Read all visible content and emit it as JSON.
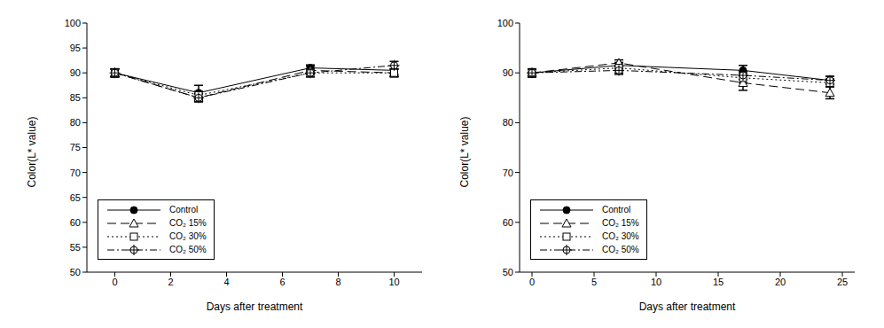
{
  "chart_data": [
    {
      "type": "line",
      "x_label": "Days after treatment",
      "y_label": "Color(L* value)",
      "x": [
        0,
        3,
        7,
        10
      ],
      "xlim": [
        -1,
        11
      ],
      "xticks": [
        0,
        2,
        4,
        6,
        8,
        10
      ],
      "ylim": [
        50,
        100
      ],
      "yticks": [
        50,
        55,
        60,
        65,
        70,
        75,
        80,
        85,
        90,
        95,
        100
      ],
      "grid": false,
      "legend": "lower left",
      "series": [
        {
          "name": "Control",
          "color": "#000000",
          "marker": "filled_circle",
          "line_style": "solid",
          "values": [
            90,
            86,
            91,
            90.5
          ],
          "errors": [
            0.8,
            1.5,
            0.6,
            0.8
          ]
        },
        {
          "name": "CO₂ 15%",
          "color": "#000000",
          "marker": "open_triangle",
          "line_style": "dashed",
          "values": [
            90,
            85,
            90.5,
            90
          ],
          "errors": [
            0.8,
            0.8,
            0.8,
            0.8
          ]
        },
        {
          "name": "CO₂ 30%",
          "color": "#000000",
          "marker": "open_square",
          "line_style": "dotted",
          "values": [
            90,
            85.5,
            90,
            90
          ],
          "errors": [
            0.8,
            0.8,
            0.8,
            0.8
          ]
        },
        {
          "name": "CO₂ 50%",
          "color": "#000000",
          "marker": "crossed_circle",
          "line_style": "dashdot",
          "values": [
            90,
            85,
            90,
            91.5
          ],
          "errors": [
            0.8,
            0.8,
            0.8,
            0.8
          ]
        }
      ]
    },
    {
      "type": "line",
      "x_label": "Days after treatment",
      "y_label": "Color(L* value)",
      "x": [
        0,
        7,
        17,
        24
      ],
      "xlim": [
        -1,
        26
      ],
      "xticks": [
        0,
        5,
        10,
        15,
        20,
        25
      ],
      "ylim": [
        50,
        100
      ],
      "yticks": [
        50,
        60,
        70,
        80,
        90,
        100
      ],
      "grid": false,
      "legend": "lower left",
      "series": [
        {
          "name": "Control",
          "color": "#000000",
          "marker": "filled_circle",
          "line_style": "solid",
          "values": [
            90,
            91.5,
            90.5,
            88.5
          ],
          "errors": [
            0.8,
            0.6,
            1.0,
            0.8
          ]
        },
        {
          "name": "CO₂ 15%",
          "color": "#000000",
          "marker": "open_triangle",
          "line_style": "dashed",
          "values": [
            90,
            92,
            88,
            86
          ],
          "errors": [
            0.8,
            0.6,
            1.5,
            1.2
          ]
        },
        {
          "name": "CO₂ 30%",
          "color": "#000000",
          "marker": "open_square",
          "line_style": "dotted",
          "values": [
            90,
            91,
            89,
            88
          ],
          "errors": [
            0.8,
            1.0,
            1.0,
            0.8
          ]
        },
        {
          "name": "CO₂ 50%",
          "color": "#000000",
          "marker": "crossed_circle",
          "line_style": "dashdot",
          "values": [
            90,
            90.5,
            89.5,
            88.5
          ],
          "errors": [
            0.8,
            0.8,
            0.8,
            0.8
          ]
        }
      ]
    }
  ]
}
